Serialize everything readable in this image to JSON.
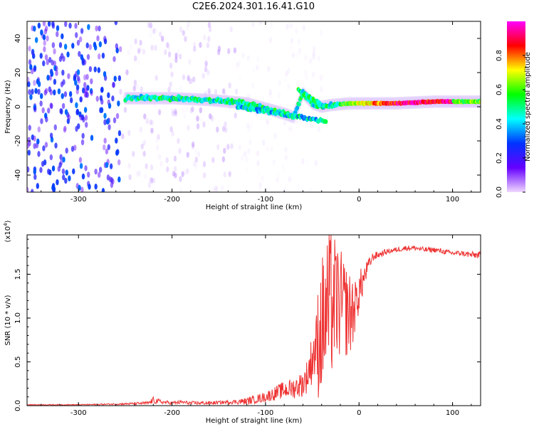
{
  "page_title": "C2E6.2024.301.16.41.G10",
  "chart_data": [
    {
      "type": "heatmap",
      "title": "C2E6.2024.301.16.41.G10",
      "xlabel": "Height of straight line (km)",
      "ylabel": "Frequency (Hz)",
      "xlim": [
        -355,
        130
      ],
      "ylim": [
        -50,
        50
      ],
      "x_ticks": [
        -300,
        -200,
        -100,
        0,
        100
      ],
      "x_tick_labels": [
        "-300",
        "-200",
        "-100",
        "0",
        "100"
      ],
      "y_ticks": [
        -40,
        -20,
        0,
        20,
        40
      ],
      "y_tick_labels": [
        "-40",
        "-20",
        "0",
        "20",
        "40"
      ],
      "colorbar": {
        "label": "Normalized spectral amplitude",
        "range": [
          0,
          1
        ],
        "ticks": [
          0,
          0.2,
          0.4,
          0.6,
          0.8
        ],
        "tick_labels": [
          "0.0",
          "0.2",
          "0.4",
          "0.6",
          "0.8"
        ],
        "colormap": [
          "#f0d8ff",
          "#6600ff",
          "#0033ff",
          "#00ffff",
          "#00ff00",
          "#ffff00",
          "#ff0000",
          "#ff00ff"
        ]
      },
      "ridge": {
        "x": [
          -250,
          -230,
          -200,
          -180,
          -160,
          -140,
          -120,
          -100,
          -80,
          -70,
          -60,
          -50,
          -40,
          -30,
          -20,
          -10,
          0,
          20,
          40,
          60,
          80,
          100,
          120,
          130
        ],
        "frequency": [
          5,
          5,
          5,
          4.5,
          4,
          3,
          2,
          -1,
          -4,
          -6,
          8,
          2,
          0,
          1,
          1.5,
          2,
          2,
          2,
          2,
          2.5,
          3,
          3,
          3,
          3
        ]
      },
      "grid": false
    },
    {
      "type": "line",
      "xlabel": "Height of straight line (km)",
      "ylabel": "SNR (10 * v/v)",
      "y_multiplier": "(x10",
      "y_multiplier_exp": "4",
      "y_multiplier_close": ")",
      "xlim": [
        -355,
        130
      ],
      "ylim": [
        0,
        1.95
      ],
      "x_ticks": [
        -300,
        -200,
        -100,
        0,
        100
      ],
      "x_tick_labels": [
        "-300",
        "-200",
        "-100",
        "0",
        "100"
      ],
      "y_ticks": [
        0,
        0.5,
        1.0,
        1.5
      ],
      "y_tick_labels": [
        "0.0",
        "0.5",
        "1.0",
        "1.5"
      ],
      "series": [
        {
          "color": "#ee3333",
          "x": [
            -355,
            -300,
            -250,
            -225,
            -220,
            -210,
            -200,
            -190,
            -180,
            -160,
            -140,
            -120,
            -100,
            -90,
            -80,
            -70,
            -60,
            -55,
            -50,
            -45,
            -40,
            -35,
            -30,
            -25,
            -20,
            -15,
            -10,
            -5,
            0,
            5,
            10,
            15,
            20,
            30,
            40,
            50,
            60,
            70,
            80,
            90,
            100,
            110,
            120,
            130
          ],
          "y": [
            0.01,
            0.01,
            0.02,
            0.03,
            0.06,
            0.04,
            0.03,
            0.04,
            0.03,
            0.03,
            0.04,
            0.05,
            0.1,
            0.14,
            0.18,
            0.2,
            0.25,
            0.35,
            0.55,
            0.7,
            0.9,
            1.05,
            1.15,
            1.2,
            1.15,
            1.1,
            1.05,
            1.1,
            1.3,
            1.45,
            1.6,
            1.7,
            1.72,
            1.76,
            1.78,
            1.8,
            1.8,
            1.78,
            1.78,
            1.76,
            1.74,
            1.74,
            1.72,
            1.72
          ],
          "noise_envelope": [
            0.005,
            0.005,
            0.01,
            0.02,
            0.04,
            0.02,
            0.02,
            0.02,
            0.02,
            0.02,
            0.02,
            0.04,
            0.06,
            0.08,
            0.1,
            0.12,
            0.15,
            0.2,
            0.3,
            0.4,
            0.5,
            0.55,
            0.55,
            0.45,
            0.4,
            0.35,
            0.3,
            0.3,
            0.25,
            0.15,
            0.08,
            0.05,
            0.04,
            0.03,
            0.03,
            0.03,
            0.03,
            0.03,
            0.03,
            0.03,
            0.03,
            0.03,
            0.04,
            0.04
          ]
        }
      ],
      "grid": false
    }
  ]
}
